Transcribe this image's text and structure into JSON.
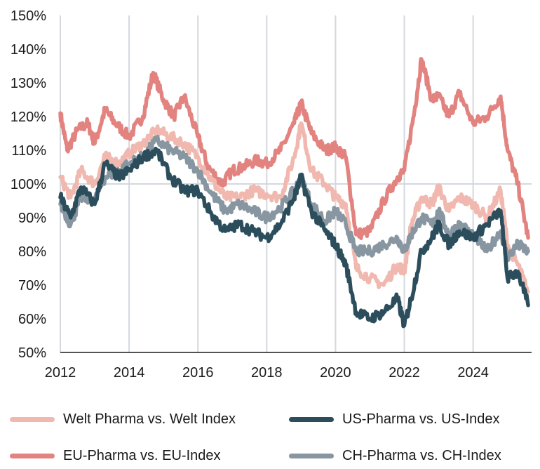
{
  "chart_data": {
    "type": "line",
    "title": "",
    "xlabel": "",
    "ylabel": "",
    "xlim": [
      2012,
      2025.7
    ],
    "ylim": [
      50,
      150
    ],
    "x_ticks": [
      2012,
      2014,
      2016,
      2018,
      2020,
      2022,
      2024
    ],
    "x_tick_labels": [
      "2012",
      "2014",
      "2016",
      "2018",
      "2020",
      "2022",
      "2024"
    ],
    "y_ticks": [
      50,
      60,
      70,
      80,
      90,
      100,
      110,
      120,
      130,
      140,
      150
    ],
    "y_tick_labels": [
      "50%",
      "60%",
      "70%",
      "80%",
      "90%",
      "100%",
      "110%",
      "120%",
      "130%",
      "140%",
      "150%"
    ],
    "reference_line": 100,
    "grid": "vertical",
    "legend_position": "bottom",
    "series": [
      {
        "name": "Welt Pharma vs. Welt Index",
        "color": "#f0b8ae",
        "points": [
          [
            2012,
            102
          ],
          [
            2012.3,
            96
          ],
          [
            2012.6,
            104
          ],
          [
            2013,
            100
          ],
          [
            2013.3,
            108
          ],
          [
            2013.7,
            106
          ],
          [
            2014,
            109
          ],
          [
            2014.4,
            112
          ],
          [
            2014.8,
            116
          ],
          [
            2015.2,
            114
          ],
          [
            2015.6,
            112
          ],
          [
            2016,
            108
          ],
          [
            2016.4,
            101
          ],
          [
            2016.8,
            96
          ],
          [
            2017.2,
            96
          ],
          [
            2017.6,
            98
          ],
          [
            2018,
            97
          ],
          [
            2018.4,
            96
          ],
          [
            2018.8,
            108
          ],
          [
            2019,
            118
          ],
          [
            2019.3,
            104
          ],
          [
            2019.7,
            100
          ],
          [
            2020,
            96
          ],
          [
            2020.3,
            94
          ],
          [
            2020.6,
            75
          ],
          [
            2021,
            72
          ],
          [
            2021.4,
            70
          ],
          [
            2021.8,
            76
          ],
          [
            2022,
            74
          ],
          [
            2022.2,
            88
          ],
          [
            2022.5,
            96
          ],
          [
            2022.8,
            94
          ],
          [
            2023,
            99
          ],
          [
            2023.3,
            92
          ],
          [
            2023.6,
            96
          ],
          [
            2024,
            94
          ],
          [
            2024.4,
            90
          ],
          [
            2024.8,
            98
          ],
          [
            2025,
            82
          ],
          [
            2025.3,
            76
          ],
          [
            2025.6,
            68
          ]
        ]
      },
      {
        "name": "US-Pharma vs. US-Index",
        "color": "#2b4d5c",
        "points": [
          [
            2012,
            96
          ],
          [
            2012.3,
            90
          ],
          [
            2012.6,
            99
          ],
          [
            2013,
            94
          ],
          [
            2013.3,
            106
          ],
          [
            2013.7,
            102
          ],
          [
            2014,
            104
          ],
          [
            2014.4,
            108
          ],
          [
            2014.8,
            110
          ],
          [
            2015.2,
            102
          ],
          [
            2015.6,
            98
          ],
          [
            2016,
            98
          ],
          [
            2016.4,
            91
          ],
          [
            2016.8,
            86
          ],
          [
            2017.2,
            88
          ],
          [
            2017.6,
            86
          ],
          [
            2018,
            84
          ],
          [
            2018.4,
            88
          ],
          [
            2018.8,
            96
          ],
          [
            2019,
            102
          ],
          [
            2019.3,
            92
          ],
          [
            2019.7,
            86
          ],
          [
            2020,
            82
          ],
          [
            2020.3,
            76
          ],
          [
            2020.6,
            62
          ],
          [
            2021,
            60
          ],
          [
            2021.4,
            62
          ],
          [
            2021.8,
            66
          ],
          [
            2022,
            58
          ],
          [
            2022.2,
            66
          ],
          [
            2022.5,
            80
          ],
          [
            2022.8,
            84
          ],
          [
            2023,
            88
          ],
          [
            2023.3,
            82
          ],
          [
            2023.6,
            86
          ],
          [
            2024,
            84
          ],
          [
            2024.4,
            88
          ],
          [
            2024.8,
            92
          ],
          [
            2025,
            72
          ],
          [
            2025.3,
            74
          ],
          [
            2025.6,
            64
          ]
        ]
      },
      {
        "name": "EU-Pharma vs. EU-Index",
        "color": "#e28380",
        "points": [
          [
            2012,
            121
          ],
          [
            2012.2,
            110
          ],
          [
            2012.5,
            116
          ],
          [
            2012.8,
            118
          ],
          [
            2013,
            112
          ],
          [
            2013.3,
            122
          ],
          [
            2013.6,
            118
          ],
          [
            2014,
            114
          ],
          [
            2014.4,
            120
          ],
          [
            2014.7,
            133
          ],
          [
            2015,
            125
          ],
          [
            2015.3,
            120
          ],
          [
            2015.6,
            126
          ],
          [
            2016,
            114
          ],
          [
            2016.3,
            105
          ],
          [
            2016.7,
            100
          ],
          [
            2017,
            104
          ],
          [
            2017.3,
            105
          ],
          [
            2017.7,
            107
          ],
          [
            2018,
            106
          ],
          [
            2018.4,
            110
          ],
          [
            2018.8,
            118
          ],
          [
            2019,
            124
          ],
          [
            2019.3,
            115
          ],
          [
            2019.7,
            110
          ],
          [
            2020,
            111
          ],
          [
            2020.3,
            108
          ],
          [
            2020.6,
            85
          ],
          [
            2021,
            86
          ],
          [
            2021.4,
            95
          ],
          [
            2021.8,
            102
          ],
          [
            2022,
            104
          ],
          [
            2022.3,
            122
          ],
          [
            2022.5,
            137
          ],
          [
            2022.8,
            125
          ],
          [
            2023,
            126
          ],
          [
            2023.3,
            120
          ],
          [
            2023.6,
            127
          ],
          [
            2024,
            118
          ],
          [
            2024.4,
            120
          ],
          [
            2024.8,
            126
          ],
          [
            2025,
            110
          ],
          [
            2025.3,
            100
          ],
          [
            2025.6,
            84
          ]
        ]
      },
      {
        "name": "CH-Pharma vs. CH-Index",
        "color": "#8796a0",
        "points": [
          [
            2012,
            94
          ],
          [
            2012.3,
            88
          ],
          [
            2012.6,
            96
          ],
          [
            2013,
            95
          ],
          [
            2013.3,
            102
          ],
          [
            2013.7,
            104
          ],
          [
            2014,
            106
          ],
          [
            2014.4,
            108
          ],
          [
            2014.8,
            113
          ],
          [
            2015.2,
            110
          ],
          [
            2015.6,
            108
          ],
          [
            2016,
            104
          ],
          [
            2016.4,
            97
          ],
          [
            2016.8,
            92
          ],
          [
            2017.2,
            94
          ],
          [
            2017.6,
            92
          ],
          [
            2018,
            90
          ],
          [
            2018.4,
            93
          ],
          [
            2018.8,
            98
          ],
          [
            2019,
            102
          ],
          [
            2019.3,
            94
          ],
          [
            2019.7,
            89
          ],
          [
            2020,
            92
          ],
          [
            2020.3,
            88
          ],
          [
            2020.6,
            80
          ],
          [
            2021,
            80
          ],
          [
            2021.4,
            82
          ],
          [
            2021.8,
            84
          ],
          [
            2022,
            80
          ],
          [
            2022.2,
            85
          ],
          [
            2022.5,
            90
          ],
          [
            2022.8,
            88
          ],
          [
            2023,
            92
          ],
          [
            2023.3,
            85
          ],
          [
            2023.6,
            88
          ],
          [
            2024,
            85
          ],
          [
            2024.4,
            80
          ],
          [
            2024.8,
            86
          ],
          [
            2025,
            78
          ],
          [
            2025.3,
            82
          ],
          [
            2025.6,
            80
          ]
        ]
      }
    ]
  }
}
